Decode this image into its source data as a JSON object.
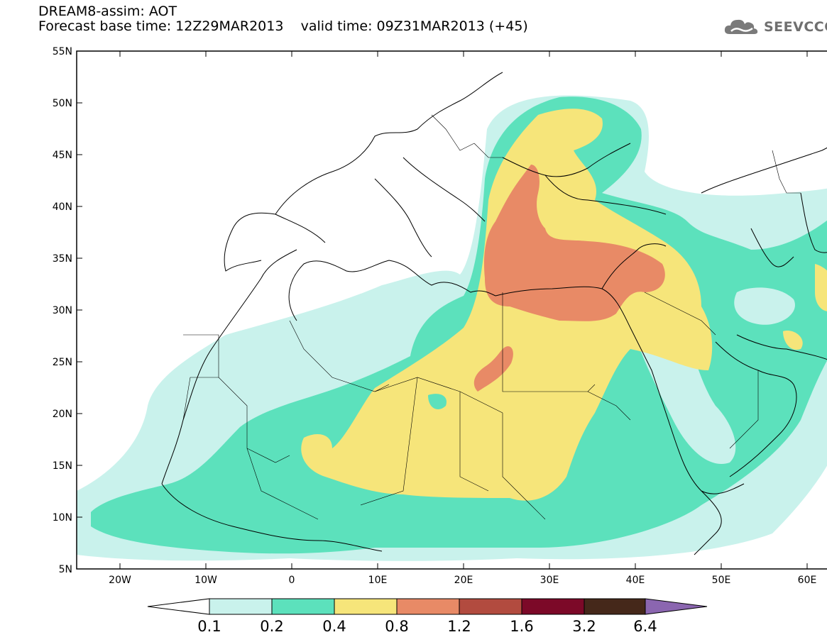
{
  "header": {
    "model_title": "DREAM8-assim: AOT",
    "base_time": "Forecast base time: 12Z29MAR2013",
    "valid_time": "valid time: 09Z31MAR2013 (+45)"
  },
  "logo": {
    "text": "SEEVCCC",
    "icon": "cloud-icon"
  },
  "map": {
    "lat_labels": [
      "55N",
      "50N",
      "45N",
      "40N",
      "35N",
      "30N",
      "25N",
      "20N",
      "15N",
      "10N",
      "5N"
    ],
    "lon_labels": [
      "20W",
      "10W",
      "0",
      "10E",
      "20E",
      "30E",
      "40E",
      "50E",
      "60E"
    ],
    "lat_range": [
      5,
      55
    ],
    "lon_range": [
      -25,
      65
    ]
  },
  "colorbar": {
    "labels": [
      "0.1",
      "0.2",
      "0.4",
      "0.8",
      "1.2",
      "1.6",
      "3.2",
      "6.4"
    ],
    "colors": [
      "#ffffff",
      "#c9f2ec",
      "#5ce1bc",
      "#f6e57a",
      "#e88a66",
      "#b24b3f",
      "#7c0928",
      "#45281a",
      "#8b66b0"
    ]
  },
  "legend_levels": {
    "c1": "#c9f2ec",
    "c2": "#5ce1bc",
    "c3": "#f6e57a",
    "c4": "#e88a66"
  }
}
